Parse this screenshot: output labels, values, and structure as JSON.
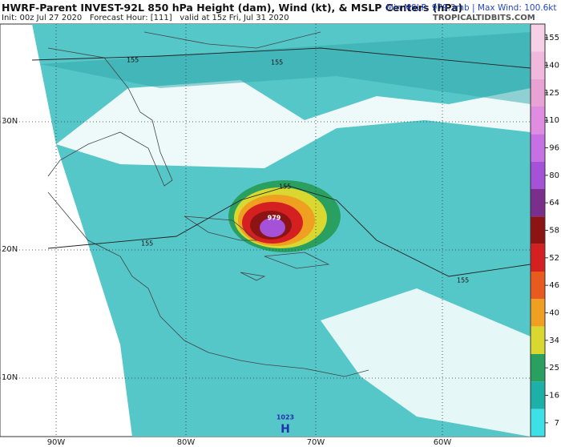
{
  "header": {
    "title": "HWRF-Parent INVEST-92L 850 hPa Height (dam), Wind (kt), & MSLP Centers (hPa)",
    "stats": "Min MSLP: 979.2mb | Max Wind: 100.6kt",
    "init": "Init: 00z Jul 27 2020   Forecast Hour: [111]   valid at 15z Fri, Jul 31 2020",
    "credit": "TROPICALTIDBITS.COM"
  },
  "map": {
    "lat_labels": [
      "30N",
      "20N",
      "10N"
    ],
    "lon_labels": [
      "90W",
      "80W",
      "70W",
      "60W"
    ],
    "contour_labels": [
      "155",
      "155",
      "155",
      "155",
      "155"
    ],
    "centers": [
      "979",
      "1023",
      "H"
    ]
  },
  "colorbar": {
    "levels": [
      155,
      140,
      125,
      110,
      96,
      80,
      64,
      58,
      52,
      46,
      40,
      34,
      25,
      16,
      7
    ],
    "colors": [
      "#f6d0e6",
      "#f0b8dc",
      "#e8a2d4",
      "#e08ce0",
      "#c670e4",
      "#a552d8",
      "#7b2f8c",
      "#8c1414",
      "#d42020",
      "#e85a1e",
      "#f0a020",
      "#d8d830",
      "#2aa060",
      "#1cb0a8",
      "#3ee0e8"
    ]
  }
}
